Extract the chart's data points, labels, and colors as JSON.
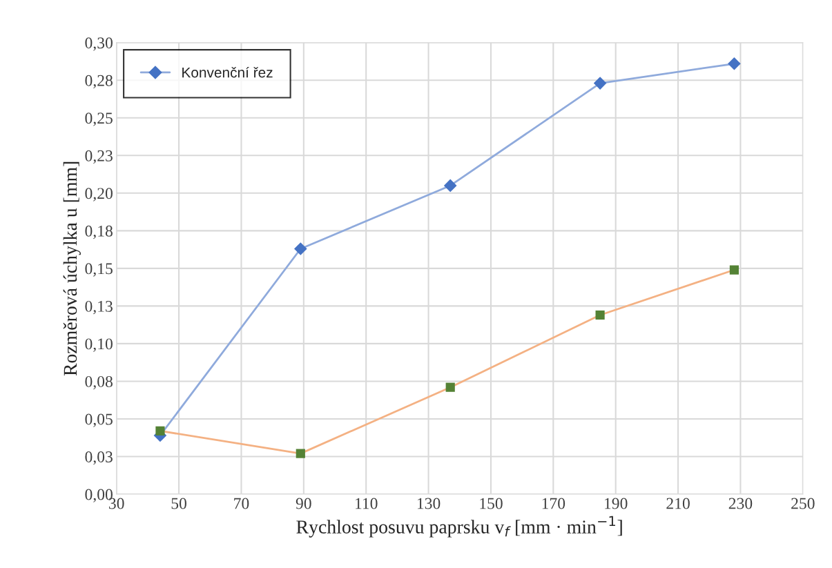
{
  "chart_data": {
    "type": "line",
    "xlabel": "Rychlost posuvu paprsku v$_{f}$ [mm · min$^{−1}$]",
    "ylabel": "Rozměrová úchylka u [mm]",
    "x": [
      44,
      89,
      137,
      185,
      228
    ],
    "series": [
      {
        "name": "Konvenční řez",
        "color": "#8faadc",
        "colors": [
          "#4472c4",
          "#4472c4",
          "#4472c4",
          "#4472c4",
          "#4472c4"
        ],
        "marker": "diamond",
        "values": [
          0.039,
          0.163,
          0.205,
          0.273,
          0.286
        ]
      },
      {
        "color": "#f4b183",
        "colors": [
          "#548235",
          "#548235",
          "#548235",
          "#548235",
          "#548235"
        ],
        "marker": "square",
        "values": [
          0.042,
          0.027,
          0.071,
          0.119,
          0.149
        ]
      }
    ],
    "xlim": [
      30,
      250
    ],
    "xticks": [
      30,
      50,
      70,
      90,
      110,
      130,
      150,
      170,
      190,
      210,
      230,
      250
    ],
    "ylim": [
      0,
      0.3
    ],
    "yticks": [
      {
        "value": 0,
        "label": "0,00"
      },
      {
        "value": 0.025,
        "label": "0,03"
      },
      {
        "value": 0.05,
        "label": "0,05"
      },
      {
        "value": 0.075,
        "label": "0,08"
      },
      {
        "value": 0.1,
        "label": "0,10"
      },
      {
        "value": 0.125,
        "label": "0,13"
      },
      {
        "value": 0.15,
        "label": "0,15"
      },
      {
        "value": 0.175,
        "label": "0,18"
      },
      {
        "value": 0.2,
        "label": "0,20"
      },
      {
        "value": 0.225,
        "label": "0,23"
      },
      {
        "value": 0.25,
        "label": "0,25"
      },
      {
        "value": 0.275,
        "label": "0,28"
      },
      {
        "value": 0.3,
        "label": "0,30"
      }
    ],
    "grid": true,
    "legend": "top left"
  }
}
